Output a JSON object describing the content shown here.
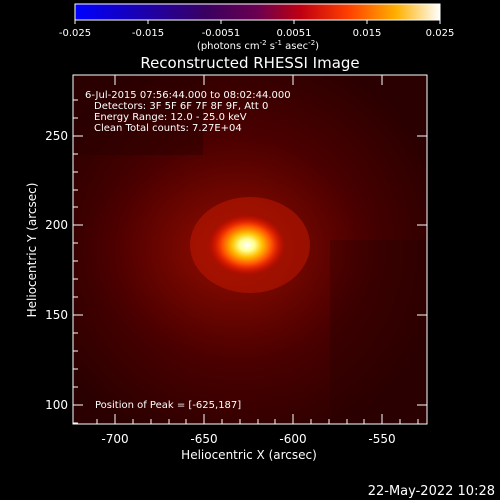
{
  "colorbar": {
    "ticks": [
      "-0.025",
      "-0.015",
      "-0.0051",
      "0.0051",
      "0.015",
      "0.025"
    ],
    "units_main": "(photons cm",
    "units_sup1": "-2",
    "units_mid": " s",
    "units_sup2": "-1",
    "units_end": " asec",
    "units_sup3": "-2",
    "units_close": ")",
    "colors": [
      "#0000ff",
      "#2a006a",
      "#5a0060",
      "#a00020",
      "#ff3000",
      "#ffb000",
      "#ffffff"
    ]
  },
  "plot": {
    "title": "Reconstructed RHESSI Image",
    "xlabel": "Heliocentric X (arcsec)",
    "ylabel": "Heliocentric Y (arcsec)",
    "info_lines": [
      " 6-Jul-2015 07:56:44.000 to 08:02:44.000",
      "Detectors: 3F 5F 6F 7F 8F 9F, Att 0",
      "Energy Range: 12.0 - 25.0 keV",
      "Clean     Total counts: 7.27E+04"
    ],
    "peak_text": "Position of Peak = [-625,187]",
    "xticks": [
      "-700",
      "-650",
      "-600",
      "-550"
    ],
    "yticks": [
      "250",
      "200",
      "150",
      "100"
    ]
  },
  "footer": {
    "timestamp": "22-May-2022 10:28"
  },
  "chart_data": {
    "type": "heatmap",
    "title": "Reconstructed RHESSI Image",
    "xlabel": "Heliocentric X (arcsec)",
    "ylabel": "Heliocentric Y (arcsec)",
    "xlim": [
      -720,
      -525
    ],
    "ylim": [
      90,
      280
    ],
    "peak": {
      "x": -625,
      "y": 187
    },
    "color_range": [
      -0.025,
      0.025
    ],
    "colormap": "hot (blue-purple-red-yellow-white)"
  }
}
